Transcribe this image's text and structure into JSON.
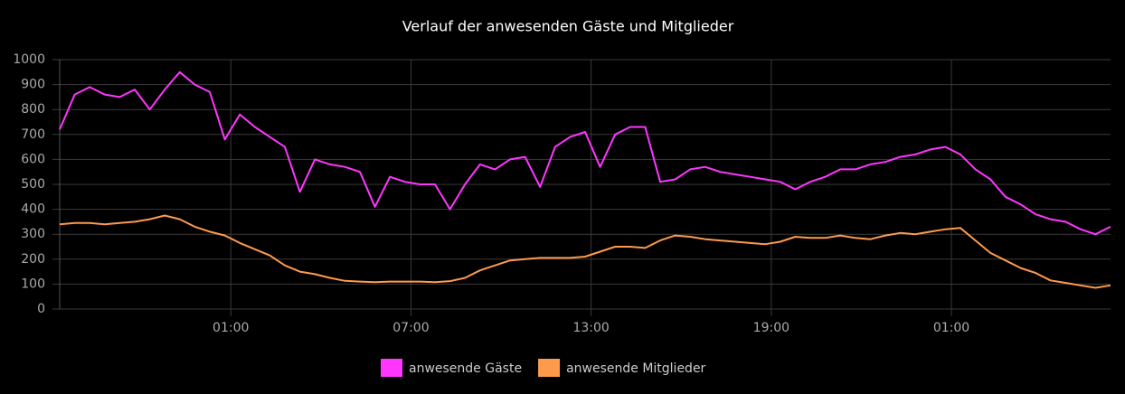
{
  "chart_data": {
    "type": "line",
    "title": "Verlauf der anwesenden Gäste und Mitglieder",
    "x": [
      19.3,
      19.8,
      20.3,
      20.8,
      21.3,
      21.8,
      22.3,
      22.8,
      23.3,
      23.8,
      24.3,
      24.8,
      25.3,
      25.8,
      26.3,
      26.8,
      27.3,
      27.8,
      28.3,
      28.8,
      29.3,
      29.8,
      30.3,
      30.8,
      31.3,
      31.8,
      32.3,
      32.8,
      33.3,
      33.8,
      34.3,
      34.8,
      35.3,
      35.8,
      36.3,
      36.8,
      37.3,
      37.8,
      38.3,
      38.8,
      39.3,
      39.8,
      40.3,
      40.8,
      41.3,
      41.8,
      42.3,
      42.8,
      43.3,
      43.8,
      44.3,
      44.8,
      45.3,
      45.8,
      46.3,
      46.8,
      47.3,
      47.8,
      48.3,
      48.8,
      49.3,
      49.8,
      50.3,
      50.8,
      51.3,
      51.8,
      52.3,
      52.8,
      53.3,
      53.8,
      54.3
    ],
    "series": [
      {
        "name": "anwesende Gäste",
        "color": "#ff36ff",
        "values": [
          720,
          860,
          890,
          860,
          850,
          880,
          800,
          880,
          950,
          900,
          870,
          680,
          780,
          730,
          690,
          650,
          470,
          600,
          580,
          570,
          550,
          410,
          530,
          510,
          500,
          500,
          400,
          500,
          580,
          560,
          600,
          610,
          490,
          650,
          690,
          710,
          570,
          700,
          730,
          730,
          510,
          520,
          560,
          570,
          550,
          540,
          530,
          520,
          510,
          480,
          510,
          530,
          560,
          560,
          580,
          590,
          610,
          620,
          640,
          650,
          620,
          560,
          520,
          450,
          420,
          380,
          360,
          350,
          320,
          300,
          330
        ]
      },
      {
        "name": "anwesende Mitglieder",
        "color": "#ff9a4d",
        "values": [
          340,
          345,
          345,
          340,
          345,
          350,
          360,
          375,
          360,
          330,
          310,
          295,
          265,
          240,
          215,
          175,
          150,
          140,
          125,
          113,
          110,
          108,
          110,
          110,
          110,
          108,
          112,
          125,
          155,
          175,
          195,
          200,
          205,
          205,
          205,
          210,
          230,
          250,
          250,
          245,
          275,
          295,
          290,
          280,
          275,
          270,
          265,
          260,
          270,
          290,
          285,
          285,
          295,
          285,
          280,
          295,
          305,
          300,
          310,
          320,
          325,
          275,
          225,
          195,
          165,
          145,
          115,
          105,
          95,
          85,
          95
        ]
      }
    ],
    "xlim": [
      19.3,
      54.3
    ],
    "xticks": [
      {
        "value": 25,
        "label": "01:00"
      },
      {
        "value": 31,
        "label": "07:00"
      },
      {
        "value": 37,
        "label": "13:00"
      },
      {
        "value": 43,
        "label": "19:00"
      },
      {
        "value": 49,
        "label": "01:00"
      }
    ],
    "ylim": [
      0,
      1000
    ],
    "yticks": [
      0,
      100,
      200,
      300,
      400,
      500,
      600,
      700,
      800,
      900,
      1000
    ],
    "grid": true
  }
}
